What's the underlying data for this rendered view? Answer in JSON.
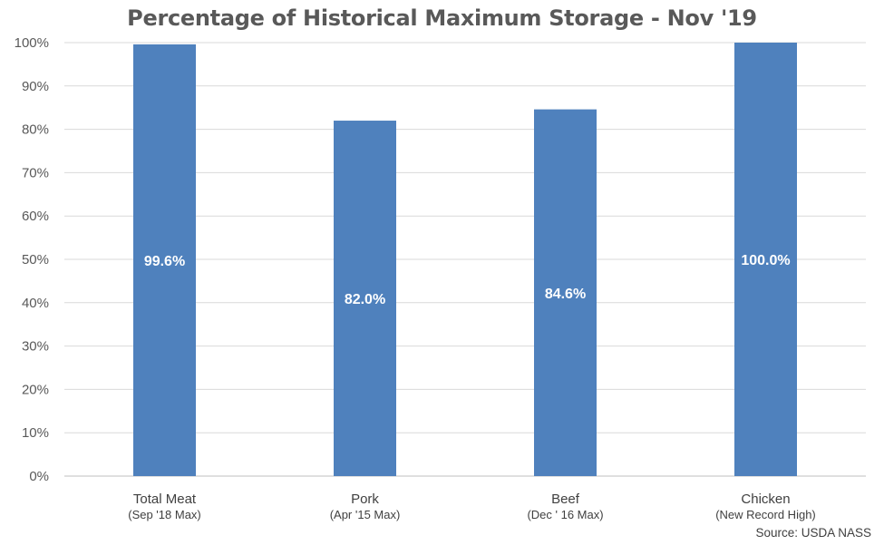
{
  "chart_data": {
    "type": "bar",
    "title": "Percentage of Historical Maximum Storage - Nov '19",
    "categories": [
      "Total Meat",
      "Pork",
      "Beef",
      "Chicken"
    ],
    "category_sublabels": [
      "(Sep '18 Max)",
      "(Apr '15 Max)",
      "(Dec ' 16 Max)",
      "(New Record High)"
    ],
    "values": [
      99.6,
      82.0,
      84.6,
      100.0
    ],
    "data_labels": [
      "99.6%",
      "82.0%",
      "84.6%",
      "100.0%"
    ],
    "ylim": [
      0,
      100
    ],
    "yticks": [
      "0%",
      "10%",
      "20%",
      "30%",
      "40%",
      "50%",
      "60%",
      "70%",
      "80%",
      "90%",
      "100%"
    ],
    "grid": true,
    "bar_color": "#4f81bd",
    "xlabel": "",
    "ylabel": ""
  },
  "source": "Source: USDA NASS"
}
